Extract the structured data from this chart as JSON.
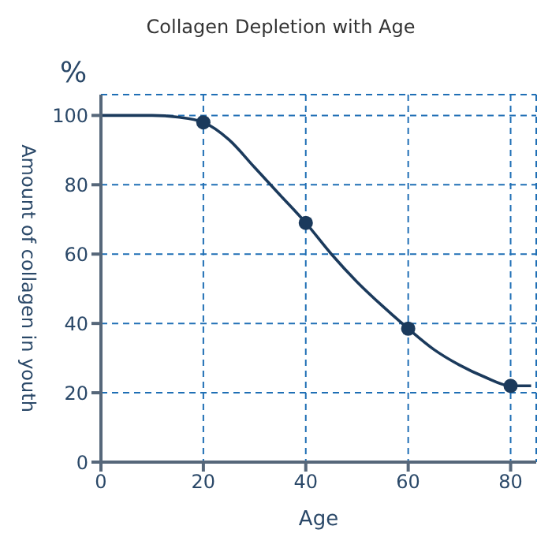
{
  "chart_data": {
    "type": "line",
    "title": "Collagen Depletion with Age",
    "xlabel": "Age",
    "ylabel": "Amount of collagen in youth",
    "annotations": [
      "%"
    ],
    "series": [
      {
        "color": "#1b3a5c",
        "marker": "none",
        "x": [
          0,
          10,
          15,
          20,
          25,
          30,
          35,
          40,
          45,
          50,
          55,
          60,
          65,
          70,
          75,
          80,
          84
        ],
        "values": [
          100,
          100,
          99.5,
          98,
          93,
          85,
          77,
          69,
          60,
          52,
          45,
          38.5,
          32.5,
          28,
          24.5,
          22,
          22
        ]
      },
      {
        "type": "scatter",
        "color": "#1b3a5c",
        "marker": "circle",
        "x": [
          20,
          40,
          60,
          80
        ],
        "values": [
          98,
          69,
          38.5,
          22
        ]
      }
    ],
    "xlim": [
      0,
      85
    ],
    "xticks": [
      0,
      20,
      40,
      60,
      80
    ],
    "ylim": [
      0,
      106
    ],
    "yticks": [
      0,
      20,
      40,
      60,
      80,
      100
    ],
    "grid": true
  }
}
